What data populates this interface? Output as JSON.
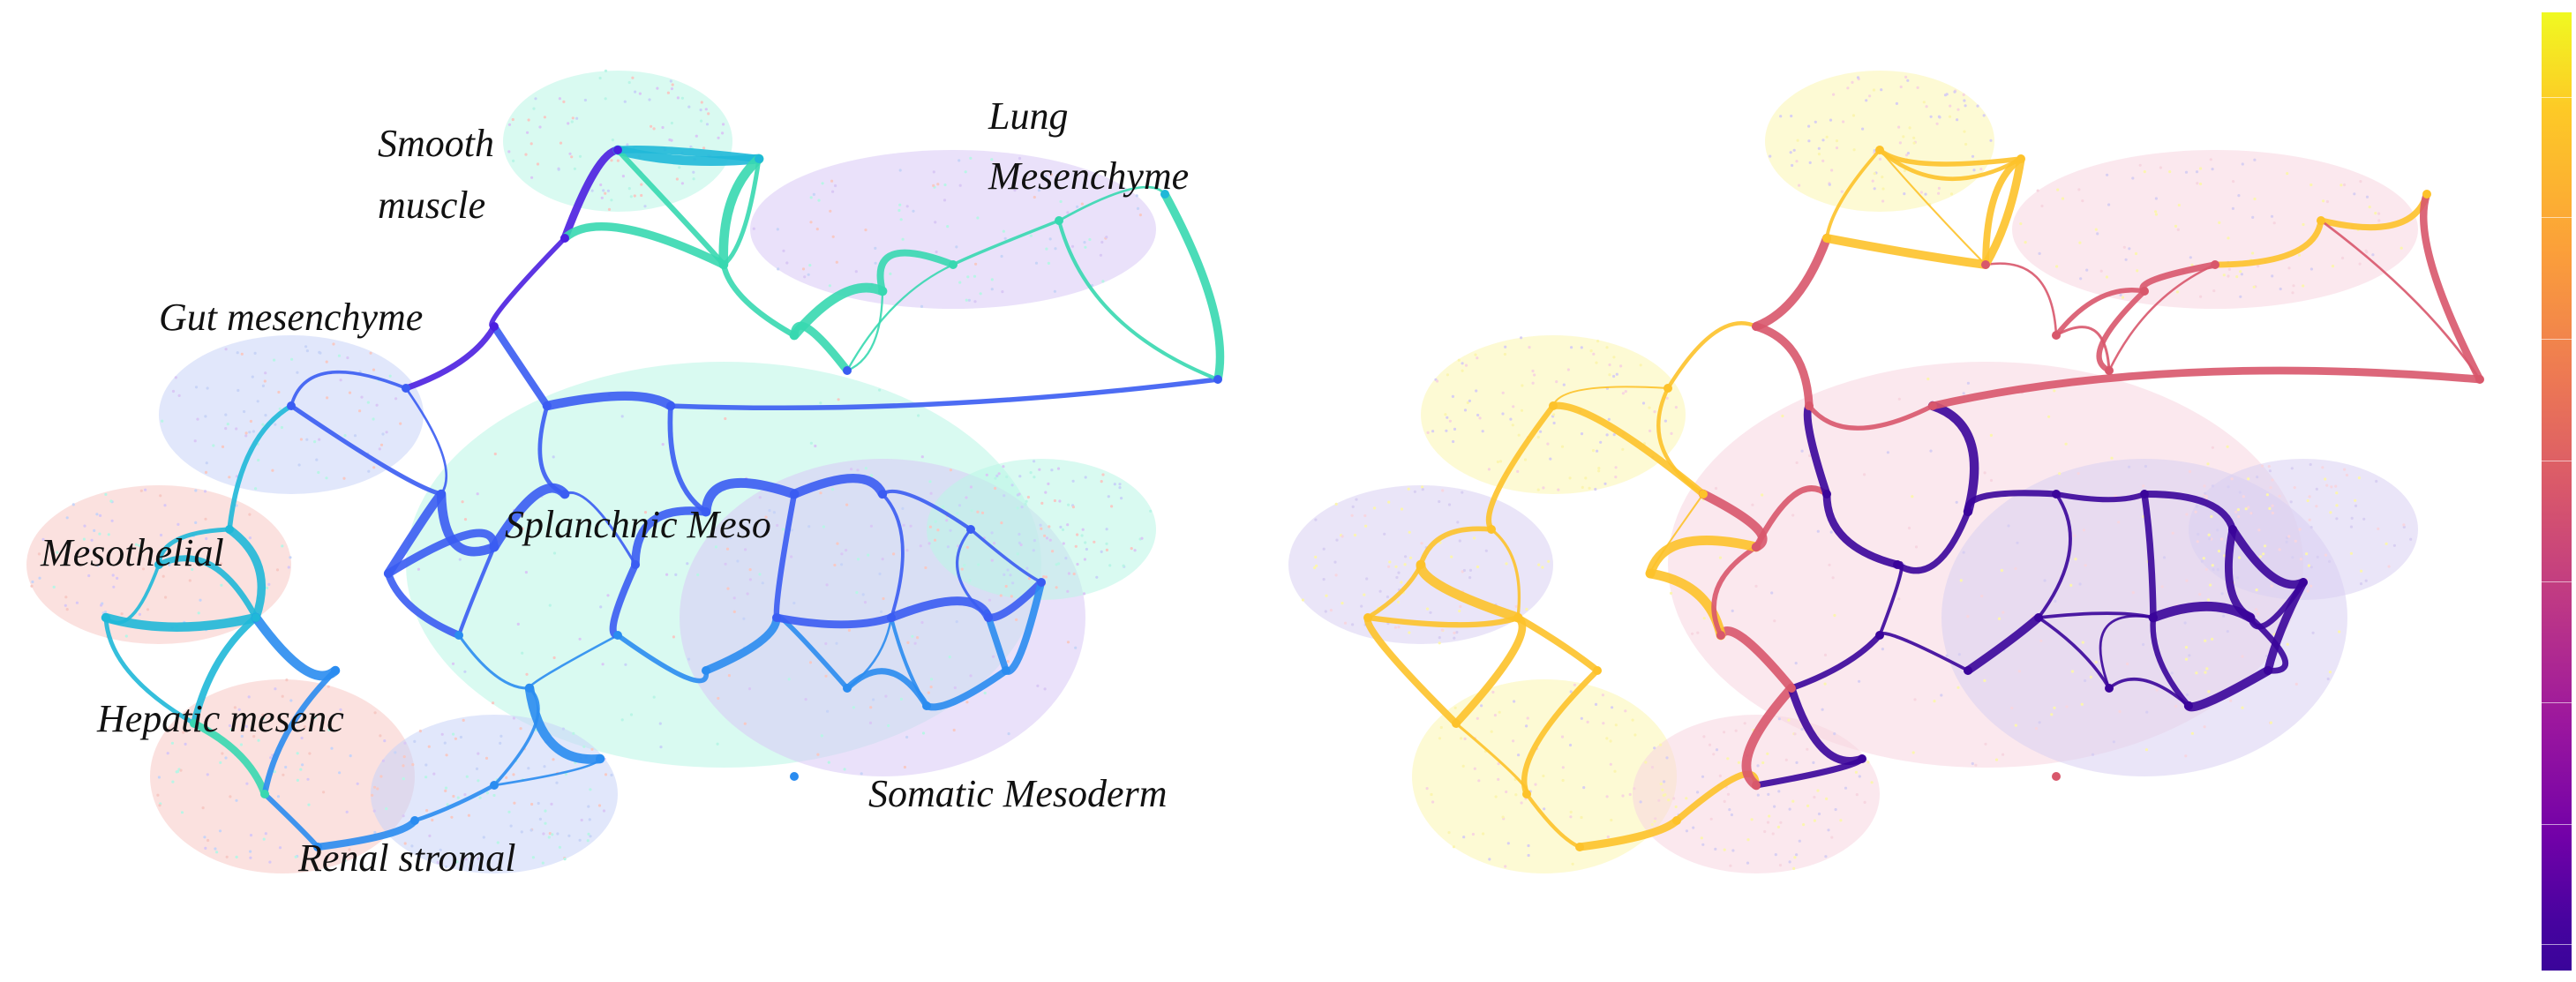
{
  "figure": {
    "left_panel": {
      "labels": {
        "smooth_muscle_1": "Smooth",
        "smooth_muscle_2": "muscle",
        "lung_1": "Lung",
        "lung_2": "Mesenchyme",
        "gut": "Gut mesenchyme",
        "mesothelial": "Mesothelial",
        "splanchnic": "Splanchnic Meso",
        "hepatic": "Hepatic mesenc",
        "renal": "Renal stromal",
        "somatic": "Somatic Mesoderm"
      },
      "palette": [
        "#4b1fe0",
        "#3a5cf2",
        "#2a8cf0",
        "#1fb8d8",
        "#37d8b0",
        "#5cf0a0"
      ],
      "cloud_colors": [
        "#b9f5e6",
        "#d9c8f5",
        "#f7c9c4",
        "#c8d4f7"
      ]
    },
    "right_panel": {
      "palette": [
        "#fdc22a",
        "#f58f3d",
        "#d8576b",
        "#9c179e",
        "#5a06a6",
        "#3a049a"
      ],
      "cloud_colors": [
        "#fbf5b0",
        "#f7d6e0",
        "#d8cff2"
      ]
    },
    "colorbar": {
      "colormap": "plasma",
      "colors": [
        "#f0f921",
        "#fdca26",
        "#fb9f3a",
        "#ed7953",
        "#d8576b",
        "#bd3786",
        "#9c179e",
        "#7201a8",
        "#46039f"
      ]
    }
  }
}
